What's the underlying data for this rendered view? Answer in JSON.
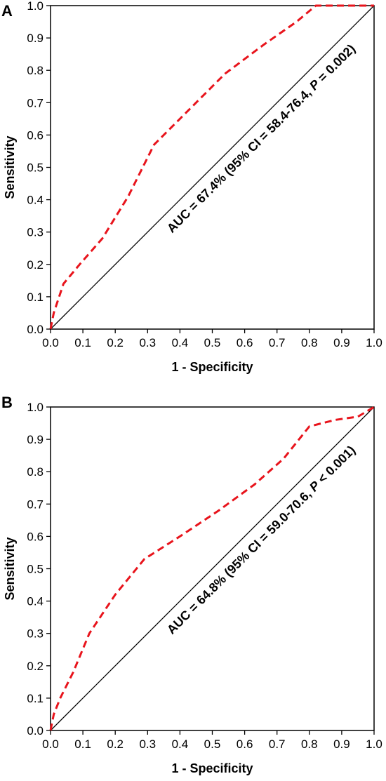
{
  "chart_data": [
    {
      "type": "line",
      "panel_label": "A",
      "xlabel": "1 - Specificity",
      "ylabel": "Sensitivity",
      "xlim": [
        0,
        1
      ],
      "ylim": [
        0,
        1
      ],
      "x_ticks": [
        "0.0",
        "0.1",
        "0.2",
        "0.3",
        "0.4",
        "0.5",
        "0.6",
        "0.7",
        "0.8",
        "0.9",
        "1.0"
      ],
      "y_ticks": [
        "0.0",
        "0.1",
        "0.2",
        "0.3",
        "0.4",
        "0.5",
        "0.6",
        "0.7",
        "0.8",
        "0.9",
        "1.0"
      ],
      "annotation_prefix": "AUC = 67.4% (95% CI = 58.4-76.4, ",
      "annotation_p": "P",
      "annotation_suffix": " = 0.002)",
      "series": [
        {
          "style": "dashed",
          "color": "#e8141c",
          "x": [
            0.0,
            0.01,
            0.04,
            0.09,
            0.16,
            0.24,
            0.32,
            0.42,
            0.54,
            0.66,
            0.76,
            0.82,
            0.86,
            1.0
          ],
          "y": [
            0.0,
            0.05,
            0.14,
            0.2,
            0.28,
            0.41,
            0.57,
            0.67,
            0.79,
            0.88,
            0.95,
            1.0,
            1.0,
            1.0
          ]
        }
      ],
      "reference_line": {
        "x": [
          0,
          1
        ],
        "y": [
          0,
          1
        ],
        "color": "#000000"
      }
    },
    {
      "type": "line",
      "panel_label": "B",
      "xlabel": "1 - Specificity",
      "ylabel": "Sensitivity",
      "xlim": [
        0,
        1
      ],
      "ylim": [
        0,
        1
      ],
      "x_ticks": [
        "0.0",
        "0.1",
        "0.2",
        "0.3",
        "0.4",
        "0.5",
        "0.6",
        "0.7",
        "0.8",
        "0.9",
        "1.0"
      ],
      "y_ticks": [
        "0.0",
        "0.1",
        "0.2",
        "0.3",
        "0.4",
        "0.5",
        "0.6",
        "0.7",
        "0.8",
        "0.9",
        "1.0"
      ],
      "annotation_prefix": "AUC = 64.8% (95% CI = 59.0-70.6, ",
      "annotation_p": "P",
      "annotation_suffix": " < 0.001)",
      "series": [
        {
          "style": "dashed",
          "color": "#e8141c",
          "x": [
            0.0,
            0.01,
            0.03,
            0.07,
            0.12,
            0.2,
            0.29,
            0.4,
            0.52,
            0.63,
            0.72,
            0.8,
            0.88,
            0.95,
            1.0
          ],
          "y": [
            0.0,
            0.05,
            0.1,
            0.18,
            0.3,
            0.42,
            0.53,
            0.6,
            0.68,
            0.76,
            0.84,
            0.94,
            0.96,
            0.97,
            1.0
          ]
        }
      ],
      "reference_line": {
        "x": [
          0,
          1
        ],
        "y": [
          0,
          1
        ],
        "color": "#000000"
      }
    }
  ]
}
